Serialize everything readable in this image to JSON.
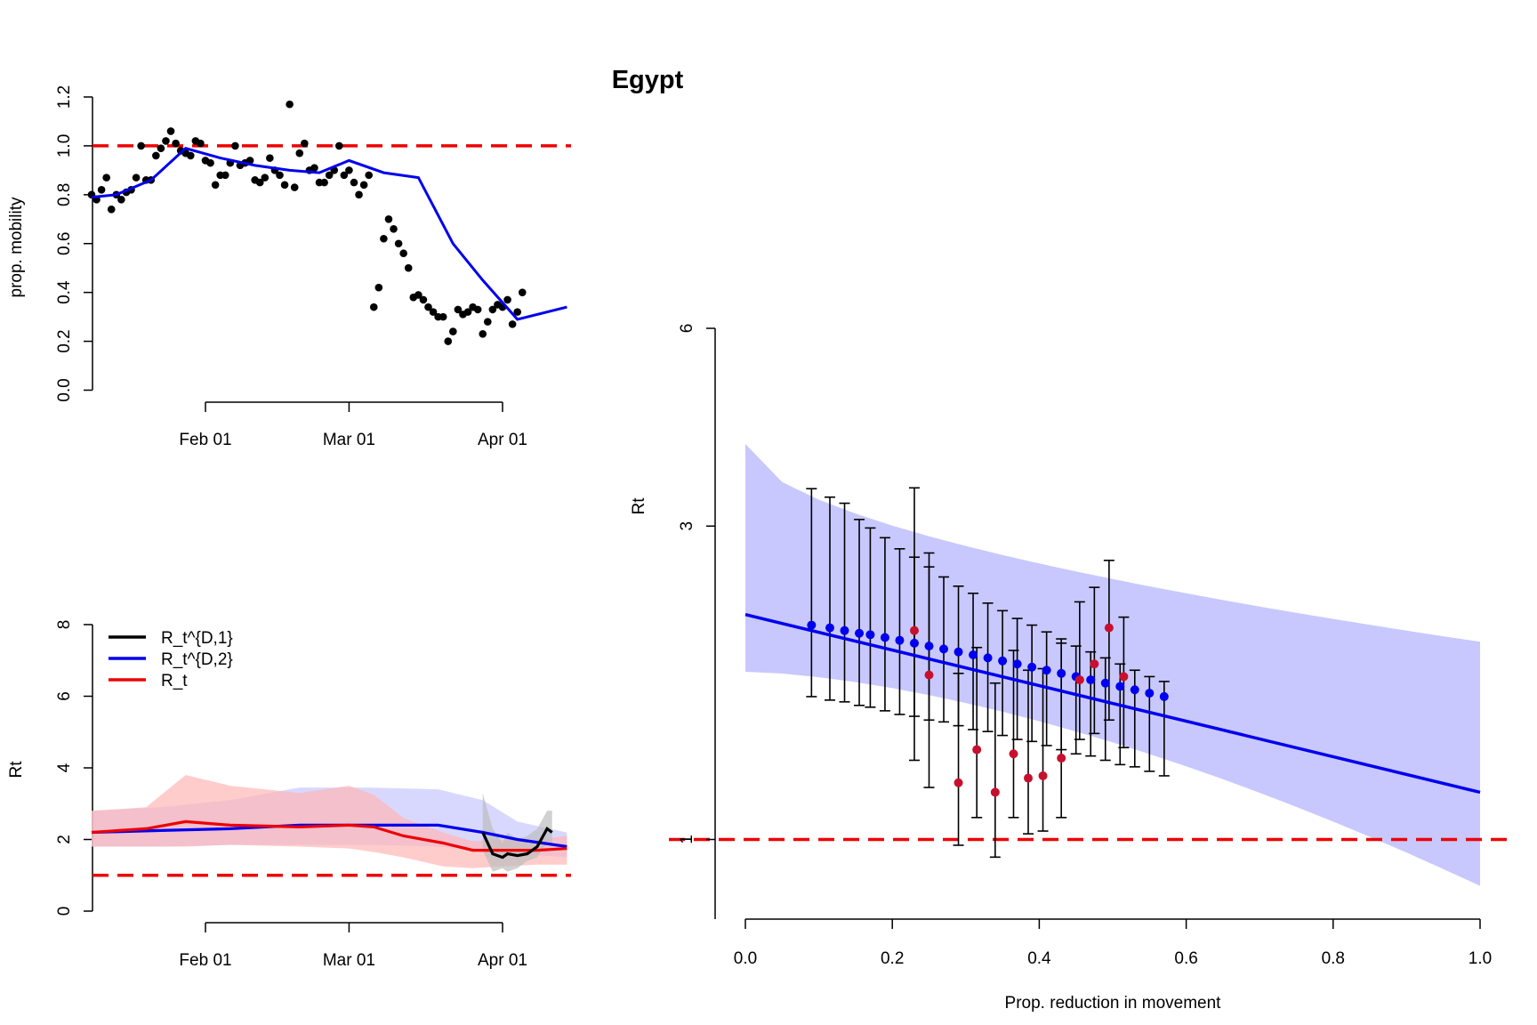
{
  "title": "Egypt",
  "colors": {
    "points": "#000000",
    "mobility_line": "#0000EE",
    "reference_line": "#EE0000",
    "rt_d1": "#000000",
    "rt_d2": "#0000EE",
    "rt": "#EE0000",
    "band_d1": "#BEBEBE",
    "band_d2": "#C8C8FF",
    "band_rt": "#FFB6B6",
    "fit_band": "#C8C8FF",
    "fit_line": "#0000EE",
    "fit_points": "#0000EE",
    "obs_points": "#C8102E"
  },
  "chart_data": [
    {
      "id": "mobility",
      "type": "scatter",
      "ylabel": "prop. mobility",
      "xlabel": "",
      "x_ticks": [
        "Feb 01",
        "Mar 01",
        "Apr 01"
      ],
      "x_tick_dates": [
        "2020-02-01",
        "2020-03-01",
        "2020-04-01"
      ],
      "y_ticks": [
        "0.0",
        "0.2",
        "0.4",
        "0.6",
        "0.8",
        "1.0",
        "1.2"
      ],
      "ylim": [
        0,
        1.2
      ],
      "xlim": [
        "2020-01-09",
        "2020-04-14"
      ],
      "reference_y": 1.0,
      "points": {
        "start_date": "2020-01-09",
        "y": [
          0.8,
          0.78,
          0.82,
          0.87,
          0.74,
          0.8,
          0.78,
          0.81,
          0.82,
          0.87,
          1.0,
          0.86,
          0.86,
          0.96,
          0.99,
          1.02,
          1.06,
          1.01,
          0.98,
          0.97,
          0.96,
          1.02,
          1.01,
          0.94,
          0.93,
          0.84,
          0.88,
          0.88,
          0.93,
          1.0,
          0.92,
          0.93,
          0.94,
          0.86,
          0.85,
          0.87,
          0.95,
          0.9,
          0.88,
          0.84,
          1.17,
          0.83,
          0.97,
          1.01,
          0.9,
          0.91,
          0.85,
          0.85,
          0.88,
          0.9,
          1.0,
          0.88,
          0.9,
          0.85,
          0.8,
          0.84,
          0.88,
          0.34,
          0.42,
          0.62,
          0.7,
          0.66,
          0.6,
          0.56,
          0.5,
          0.38,
          0.39,
          0.37,
          0.34,
          0.32,
          0.3,
          0.3,
          0.2,
          0.24,
          0.33,
          0.31,
          0.32,
          0.34,
          0.33,
          0.23,
          0.28,
          0.33,
          0.35,
          0.34,
          0.37,
          0.27,
          0.32,
          0.4
        ]
      },
      "series": [
        {
          "name": "",
          "x": [
            "2020-01-09",
            "2020-01-14",
            "2020-01-21",
            "2020-01-28",
            "2020-02-04",
            "2020-02-11",
            "2020-02-18",
            "2020-02-24",
            "2020-03-01",
            "2020-03-08",
            "2020-03-15",
            "2020-03-22",
            "2020-03-28",
            "2020-04-04",
            "2020-04-14"
          ],
          "values": [
            0.79,
            0.8,
            0.86,
            0.99,
            0.95,
            0.92,
            0.9,
            0.89,
            0.94,
            0.89,
            0.87,
            0.6,
            0.45,
            0.29,
            0.34
          ]
        }
      ]
    },
    {
      "id": "rt_time",
      "type": "line",
      "ylabel": "Rt",
      "xlabel": "",
      "x_ticks": [
        "Feb 01",
        "Mar 01",
        "Apr 01"
      ],
      "x_tick_dates": [
        "2020-02-01",
        "2020-03-01",
        "2020-04-01"
      ],
      "y_ticks": [
        "0",
        "2",
        "4",
        "6",
        "8"
      ],
      "ylim": [
        0,
        8
      ],
      "xlim": [
        "2020-01-09",
        "2020-04-14"
      ],
      "reference_y": 1.0,
      "legend": {
        "position": "top-left",
        "entries": [
          "R_t^{D,1}",
          "R_t^{D,2}",
          "R_t"
        ]
      },
      "series": [
        {
          "name": "R_t^{D,1}",
          "x": [
            "2020-03-28",
            "2020-03-30",
            "2020-04-01",
            "2020-04-02",
            "2020-04-04",
            "2020-04-06",
            "2020-04-08",
            "2020-04-10",
            "2020-04-11"
          ],
          "values": [
            2.2,
            1.6,
            1.5,
            1.6,
            1.55,
            1.6,
            1.8,
            2.3,
            2.2
          ],
          "band_lower": [
            1.7,
            1.1,
            1.2,
            1.1,
            1.2,
            1.4,
            1.5,
            1.9,
            1.8
          ],
          "band_upper": [
            3.3,
            2.3,
            1.9,
            2.2,
            2.0,
            2.1,
            2.3,
            2.8,
            2.8
          ]
        },
        {
          "name": "R_t^{D,2}",
          "x": [
            "2020-01-09",
            "2020-01-23",
            "2020-02-06",
            "2020-02-20",
            "2020-03-05",
            "2020-03-19",
            "2020-03-28",
            "2020-04-04",
            "2020-04-14"
          ],
          "values": [
            2.2,
            2.25,
            2.3,
            2.4,
            2.4,
            2.4,
            2.2,
            2.0,
            1.8
          ],
          "band_lower": [
            1.8,
            1.8,
            1.85,
            1.85,
            1.85,
            1.8,
            1.7,
            1.6,
            1.5
          ],
          "band_upper": [
            2.8,
            2.9,
            3.1,
            3.45,
            3.45,
            3.4,
            3.1,
            2.5,
            2.2
          ]
        },
        {
          "name": "R_t",
          "x": [
            "2020-01-09",
            "2020-01-20",
            "2020-01-28",
            "2020-02-06",
            "2020-02-20",
            "2020-03-01",
            "2020-03-06",
            "2020-03-12",
            "2020-03-20",
            "2020-03-26",
            "2020-04-01",
            "2020-04-08",
            "2020-04-14"
          ],
          "values": [
            2.2,
            2.3,
            2.5,
            2.4,
            2.35,
            2.4,
            2.35,
            2.1,
            1.9,
            1.7,
            1.7,
            1.7,
            1.75
          ],
          "band_lower": [
            1.8,
            1.8,
            1.8,
            1.85,
            1.8,
            1.75,
            1.65,
            1.5,
            1.25,
            1.2,
            1.25,
            1.3,
            1.3
          ],
          "band_upper": [
            2.8,
            2.9,
            3.8,
            3.5,
            3.3,
            3.5,
            3.25,
            2.6,
            2.2,
            1.95,
            2.0,
            2.0,
            2.1
          ]
        }
      ]
    },
    {
      "id": "rt_vs_movement",
      "type": "scatter",
      "ylabel": "Rt",
      "xlabel": "Prop. reduction in movement",
      "y_scale": "log",
      "x_ticks": [
        "0.0",
        "0.2",
        "0.4",
        "0.6",
        "0.8",
        "1.0"
      ],
      "y_ticks": [
        "1",
        "3",
        "6"
      ],
      "xlim": [
        0,
        1.0
      ],
      "ylim": [
        0.7,
        6
      ],
      "reference_y": 1.0,
      "fit_line": {
        "x": [
          0.0,
          1.0
        ],
        "values": [
          2.2,
          1.18
        ],
        "band_lower": [
          1.8,
          0.85
        ],
        "band_upper": [
          4.0,
          2.0
        ]
      },
      "fitted_points": {
        "x": [
          0.09,
          0.115,
          0.135,
          0.155,
          0.17,
          0.19,
          0.21,
          0.23,
          0.25,
          0.27,
          0.29,
          0.31,
          0.33,
          0.35,
          0.37,
          0.39,
          0.41,
          0.43,
          0.45,
          0.47,
          0.49,
          0.51,
          0.53,
          0.55,
          0.57
        ],
        "values": [
          2.12,
          2.1,
          2.08,
          2.06,
          2.05,
          2.03,
          2.01,
          1.99,
          1.97,
          1.95,
          1.93,
          1.91,
          1.89,
          1.87,
          1.85,
          1.83,
          1.81,
          1.79,
          1.77,
          1.75,
          1.73,
          1.71,
          1.69,
          1.67,
          1.65
        ],
        "err_lower": [
          1.65,
          1.63,
          1.62,
          1.6,
          1.59,
          1.57,
          1.55,
          1.54,
          1.52,
          1.51,
          1.49,
          1.47,
          1.46,
          1.44,
          1.42,
          1.41,
          1.39,
          1.37,
          1.35,
          1.34,
          1.32,
          1.3,
          1.29,
          1.27,
          1.25
        ],
        "err_upper": [
          3.42,
          3.32,
          3.25,
          3.07,
          2.98,
          2.88,
          2.77,
          2.69,
          2.6,
          2.51,
          2.43,
          2.37,
          2.29,
          2.23,
          2.17,
          2.12,
          2.07,
          2.02,
          1.97,
          1.93,
          1.89,
          1.85,
          1.81,
          1.77,
          1.74
        ]
      },
      "observed_points": {
        "x": [
          0.23,
          0.25,
          0.29,
          0.315,
          0.34,
          0.365,
          0.385,
          0.405,
          0.43,
          0.455,
          0.475,
          0.495,
          0.515
        ],
        "values": [
          2.08,
          1.78,
          1.22,
          1.37,
          1.18,
          1.35,
          1.24,
          1.25,
          1.33,
          1.75,
          1.85,
          2.1,
          1.77
        ],
        "err_lower": [
          1.32,
          1.2,
          0.98,
          1.08,
          0.94,
          1.08,
          1.02,
          1.03,
          1.08,
          1.42,
          1.45,
          1.52,
          1.38
        ],
        "err_upper": [
          3.43,
          2.73,
          1.79,
          1.96,
          1.73,
          1.94,
          1.81,
          1.82,
          1.99,
          2.3,
          2.42,
          2.66,
          2.18
        ]
      }
    }
  ]
}
